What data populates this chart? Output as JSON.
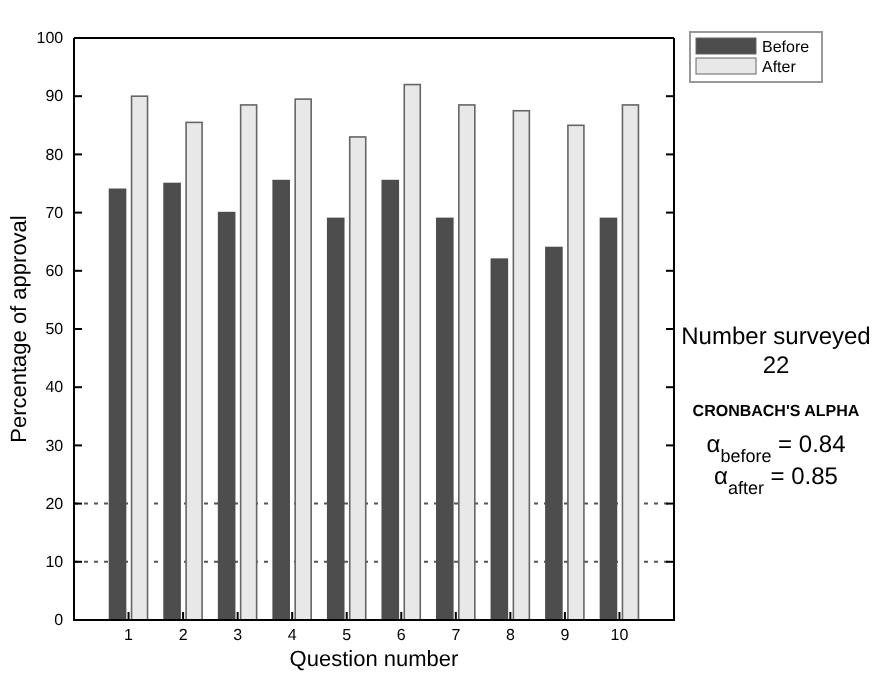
{
  "chart_data": {
    "type": "bar",
    "xlabel": "Question number",
    "ylabel": "Percentage of approval",
    "categories": [
      "1",
      "2",
      "3",
      "4",
      "5",
      "6",
      "7",
      "8",
      "9",
      "10"
    ],
    "series": [
      {
        "name": "Before",
        "color": "#4d4d4d",
        "values": [
          74,
          75,
          70,
          75.5,
          69,
          75.5,
          69,
          62,
          64,
          69
        ]
      },
      {
        "name": "After",
        "color": "#e8e8e8",
        "values": [
          90,
          85.5,
          88.5,
          89.5,
          83,
          92,
          88.5,
          87.5,
          85,
          88.5
        ]
      }
    ],
    "ylim": [
      0,
      100
    ],
    "yticks": [
      0,
      10,
      20,
      30,
      40,
      50,
      60,
      70,
      80,
      90,
      100
    ],
    "ref_lines": [
      {
        "axis": "y",
        "value": 10,
        "line_style": "dotted"
      },
      {
        "axis": "y",
        "value": 20,
        "line_style": "dotted"
      }
    ],
    "legend": "top right",
    "annotations": [
      "Number surveyed\n22",
      "CRONBACH'S ALPHA",
      "α$_{before}$ = 0.84",
      "α$_{after}$ = 0.85"
    ]
  }
}
